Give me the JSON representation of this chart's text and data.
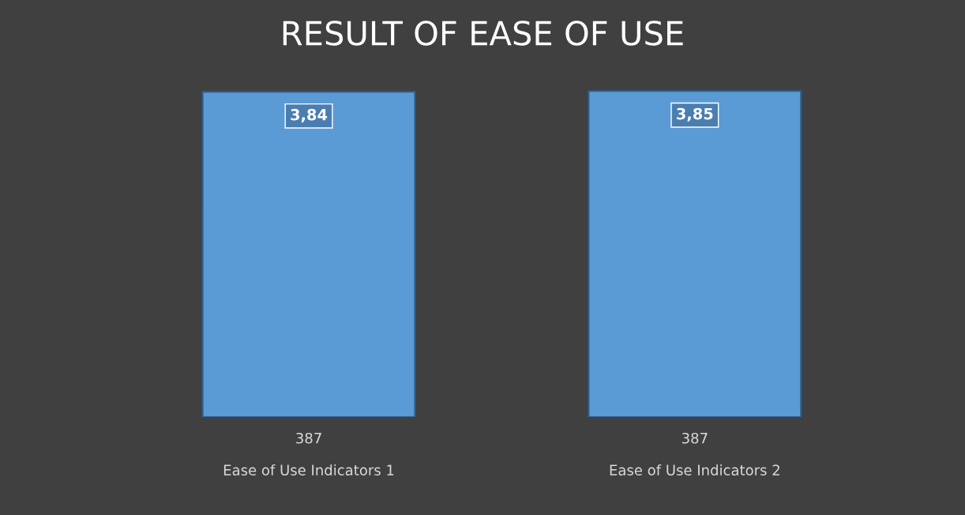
{
  "chart_data": {
    "type": "bar",
    "title": "RESULT OF EASE OF USE",
    "categories": [
      "387\n\nEase of Use Indicators 1",
      "387\n\nEase of Use Indicators 2"
    ],
    "values": [
      3.84,
      3.85
    ],
    "value_labels": [
      "3,84",
      "3,85"
    ],
    "color": "#5b9bd5",
    "tick_labels": "x",
    "grid": false,
    "legend": false
  }
}
